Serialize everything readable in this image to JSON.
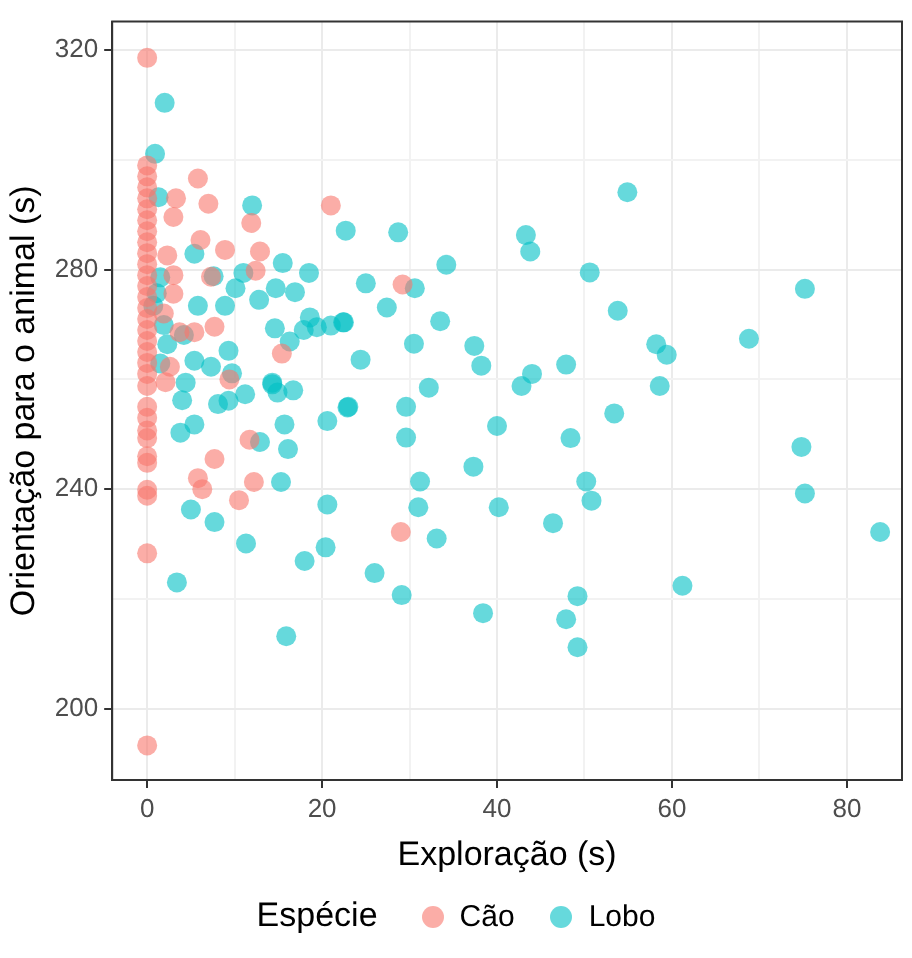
{
  "chart_data": {
    "type": "scatter",
    "xlabel": "Exploração (s)",
    "ylabel": "Orientação para o animal (s)",
    "legend_title": "Espécie",
    "legend": "bottom",
    "grid": true,
    "marker": "circle",
    "xlim": [
      -4,
      86.3
    ],
    "ylim": [
      187,
      325.2
    ],
    "xticks": [
      0,
      {
        "value": 10,
        "label": null
      },
      20,
      {
        "value": 30,
        "label": null
      },
      40,
      {
        "value": 50,
        "label": null
      },
      60,
      {
        "value": 70,
        "label": null
      },
      80
    ],
    "yticks": [
      200,
      {
        "value": 220,
        "label": null
      },
      240,
      {
        "value": 260,
        "label": null
      },
      280,
      {
        "value": 300,
        "label": null
      },
      320
    ],
    "series": [
      {
        "name": "Cão",
        "color": "#f8766d",
        "x": [
          0,
          0,
          0,
          0,
          0,
          0,
          0,
          0,
          0,
          0,
          0,
          0,
          0,
          0,
          0,
          0,
          0,
          0,
          0,
          0,
          0,
          0,
          0,
          0,
          0,
          0,
          0,
          0,
          0,
          0,
          0,
          0,
          2.1,
          9.4,
          11.7,
          7.7,
          5.8,
          6.3,
          12.2,
          10.5,
          5.8,
          7,
          3.3,
          11.9,
          21,
          3,
          6.1,
          8.9,
          12.9,
          12.4,
          7.3,
          3,
          2.3,
          1.9,
          3,
          5.4,
          7.7,
          15.4,
          2.6,
          3.7,
          29.2,
          29
        ],
        "values": [
          318.6,
          193.3,
          228.3,
          299,
          297,
          295,
          293,
          291,
          289,
          287,
          285,
          283,
          281,
          279,
          277,
          275,
          273,
          271,
          269,
          267,
          265,
          263,
          261,
          258.8,
          255,
          250.7,
          249.3,
          244.8,
          239.9,
          238.8,
          253,
          246,
          259.5,
          260,
          249,
          245.5,
          242,
          240,
          241.3,
          238,
          296.6,
          292,
          293,
          288.5,
          291.7,
          289.6,
          285.4,
          283.6,
          283.3,
          279.8,
          278.7,
          279,
          282.6,
          272,
          275.6,
          268.6,
          269.6,
          264.7,
          262.3,
          268.6,
          277.3,
          232.2
        ]
      },
      {
        "name": "Lobo",
        "color": "#00bfc4",
        "x": [
          54.9,
          22.7,
          28.7,
          43.3,
          43.8,
          34.2,
          50.6,
          25,
          30.6,
          75.2,
          27.4,
          53.8,
          22.5,
          33.5,
          68.8,
          30.5,
          37.4,
          58.2,
          59.4,
          24.4,
          38.2,
          47.9,
          44,
          42.8,
          32.2,
          58.6,
          23,
          29.6,
          53.4,
          40,
          29.6,
          48.4,
          74.8,
          37.3,
          31.2,
          50.2,
          75.2,
          31,
          40.2,
          50.8,
          33.1,
          46.4,
          83.8,
          26,
          61.2,
          29.1,
          49.2,
          38.4,
          47.9,
          49.2,
          4,
          5.4,
          3.8,
          8.1,
          9.3,
          11.2,
          14.3,
          14.9,
          16.7,
          12.9,
          15.7,
          16.1,
          20.6,
          22.9,
          15.3,
          5,
          7.7,
          20.6,
          11.3,
          20.4,
          18,
          3.4,
          15.9,
          2,
          0.9,
          12,
          1.3,
          5.4,
          15.5,
          18.5,
          7.6,
          11,
          14.7,
          16.9,
          10.1,
          5.8,
          8.9,
          0.7,
          12.8,
          18.6,
          14.6,
          16.3,
          17.9,
          19.4,
          21,
          22.4,
          5.4,
          7.3,
          9.3,
          9.7,
          4.4,
          1.5,
          1.9,
          4.2,
          1.5,
          1.1,
          2.3,
          14.3
        ],
        "values": [
          294.1,
          287.1,
          286.8,
          286.3,
          283.3,
          280.9,
          279.5,
          277.5,
          276.6,
          276.5,
          273.1,
          272.5,
          270.4,
          270.6,
          267.4,
          266.5,
          266.1,
          266.4,
          264.5,
          263.6,
          262.5,
          262.7,
          261,
          258.8,
          258.5,
          258.8,
          255,
          255,
          253.8,
          251.5,
          249.4,
          249.3,
          247.7,
          244.1,
          241.4,
          241.4,
          239.2,
          236.7,
          236.7,
          237.9,
          231,
          233.8,
          232.2,
          224.7,
          222.4,
          220.7,
          220.5,
          217.4,
          216.3,
          211.2,
          256.2,
          251.8,
          250.3,
          255.5,
          256.1,
          257.3,
          259.1,
          257.6,
          258,
          248.6,
          251.8,
          247.3,
          252.4,
          254.9,
          241.3,
          236.3,
          234,
          237.2,
          230.1,
          229.4,
          226.9,
          223,
          213.2,
          310.4,
          301.1,
          291.7,
          293.2,
          282.9,
          281.2,
          279.4,
          278.8,
          279.4,
          276.6,
          275.9,
          276.6,
          273.4,
          273.4,
          273.4,
          274.5,
          271.3,
          269.3,
          266.9,
          269,
          269.5,
          269.8,
          270.4,
          263.4,
          262.3,
          265.2,
          261.1,
          259.4,
          262.9,
          269.9,
          268.1,
          278.6,
          275.7,
          266.4,
          259.4
        ]
      }
    ]
  }
}
